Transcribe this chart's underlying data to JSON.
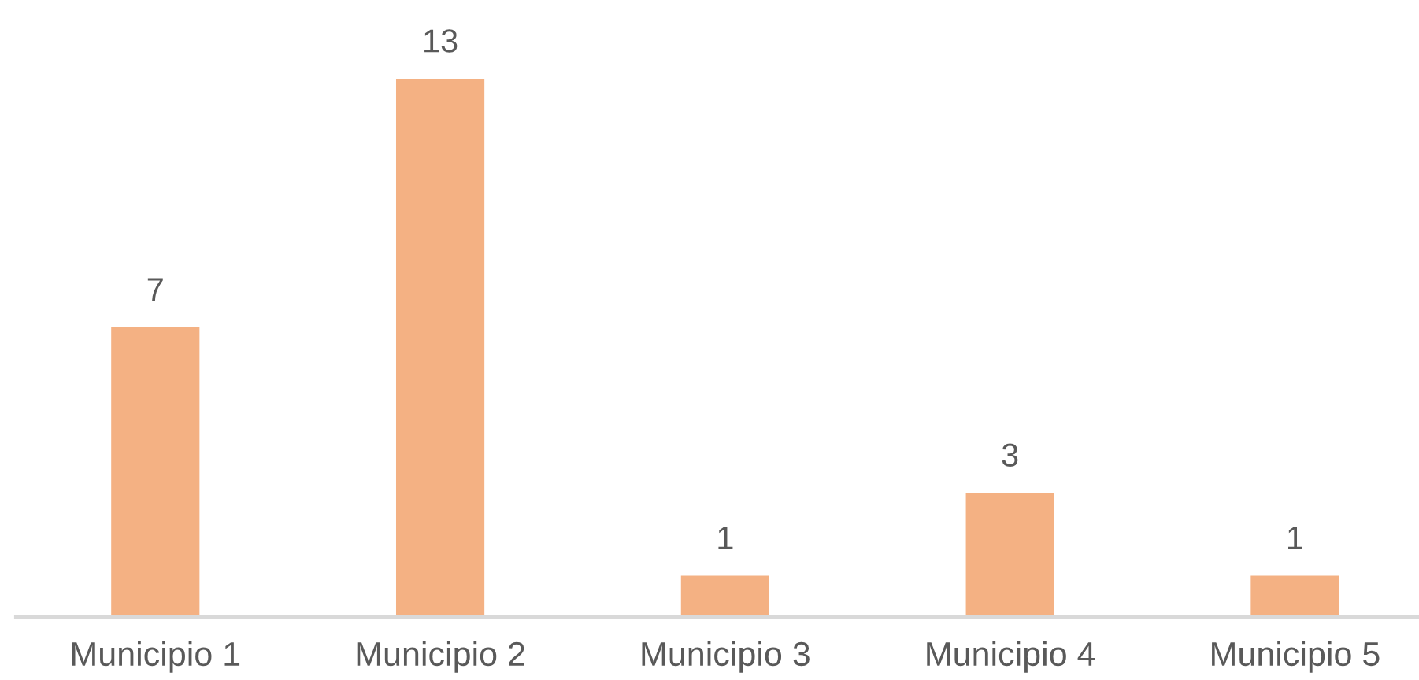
{
  "chart_data": {
    "type": "bar",
    "categories": [
      "Municipio 1",
      "Municipio 2",
      "Municipio 3",
      "Municipio 4",
      "Municipio 5"
    ],
    "values": [
      7,
      13,
      1,
      3,
      1
    ],
    "color": "#f4b183",
    "data_labels": true,
    "tick_labels": "x"
  }
}
